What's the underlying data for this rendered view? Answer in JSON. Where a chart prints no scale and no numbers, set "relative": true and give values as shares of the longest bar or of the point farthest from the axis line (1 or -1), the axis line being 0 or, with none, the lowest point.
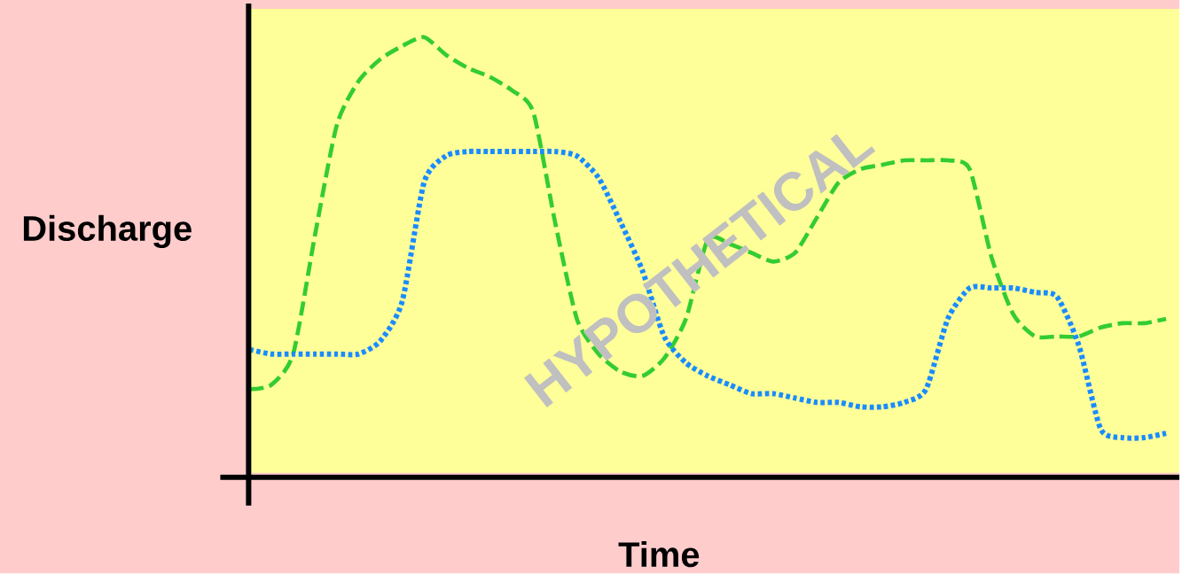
{
  "chart_data": {
    "type": "line",
    "relative": true,
    "xlabel": "Time",
    "ylabel": "Discharge",
    "annotations": [
      "HYPOTHETICAL"
    ],
    "categories": [
      null,
      null,
      null,
      null,
      null,
      null,
      null,
      null,
      null,
      null,
      null,
      null,
      null,
      null,
      null,
      null,
      null,
      null,
      null,
      null,
      null,
      null,
      null,
      null,
      null,
      null,
      null,
      null,
      null,
      null,
      null,
      null,
      null,
      null,
      null,
      null,
      null,
      null,
      null,
      null,
      null,
      null,
      null
    ],
    "series": [
      {
        "color": "#33cc33",
        "line_style": "dashed",
        "values": [
          0.2,
          0.21,
          0.28,
          0.55,
          0.8,
          0.9,
          0.95,
          0.98,
          1,
          0.96,
          0.93,
          0.91,
          0.88,
          0.83,
          0.58,
          0.36,
          0.28,
          0.24,
          0.23,
          0.27,
          0.36,
          0.54,
          0.53,
          0.51,
          0.49,
          0.51,
          0.59,
          0.67,
          0.7,
          0.71,
          0.72,
          0.72,
          0.72,
          0.7,
          0.5,
          0.37,
          0.32,
          0.32,
          0.32,
          0.34,
          0.35,
          0.35,
          0.36
        ]
      },
      {
        "color": "#1a8cff",
        "line_style": "dotted",
        "values": [
          0.29,
          0.28,
          0.28,
          0.28,
          0.28,
          0.28,
          0.31,
          0.4,
          0.67,
          0.73,
          0.74,
          0.74,
          0.74,
          0.74,
          0.74,
          0.73,
          0.68,
          0.58,
          0.47,
          0.32,
          0.26,
          0.23,
          0.21,
          0.19,
          0.19,
          0.18,
          0.17,
          0.17,
          0.16,
          0.16,
          0.17,
          0.2,
          0.36,
          0.43,
          0.43,
          0.43,
          0.42,
          0.41,
          0.3,
          0.11,
          0.09,
          0.09,
          0.1
        ]
      }
    ]
  }
}
